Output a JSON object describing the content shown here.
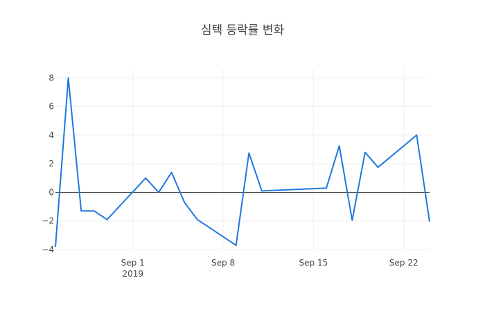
{
  "chart_data": {
    "type": "line",
    "title": "심텍 등락률 변화",
    "xlabel": "",
    "ylabel": "",
    "grid": true,
    "legend": "none",
    "x_range": [
      "2019-08-26",
      "2019-09-24"
    ],
    "y_range": [
      -4,
      8.6
    ],
    "x_ticks": [
      {
        "date": "2019-09-01",
        "label": "Sep 1",
        "sublabel": "2019"
      },
      {
        "date": "2019-09-08",
        "label": "Sep 8",
        "sublabel": ""
      },
      {
        "date": "2019-09-15",
        "label": "Sep 15",
        "sublabel": ""
      },
      {
        "date": "2019-09-22",
        "label": "Sep 22",
        "sublabel": ""
      }
    ],
    "y_ticks": [
      {
        "value": -4,
        "label": "−4"
      },
      {
        "value": -2,
        "label": "−2"
      },
      {
        "value": 0,
        "label": "0"
      },
      {
        "value": 2,
        "label": "2"
      },
      {
        "value": 4,
        "label": "4"
      },
      {
        "value": 6,
        "label": "6"
      },
      {
        "value": 8,
        "label": "8"
      }
    ],
    "series": [
      {
        "color": "#1f77e0",
        "x": [
          "2019-08-26",
          "2019-08-27",
          "2019-08-28",
          "2019-08-29",
          "2019-08-30",
          "2019-09-02",
          "2019-09-03",
          "2019-09-04",
          "2019-09-05",
          "2019-09-06",
          "2019-09-09",
          "2019-09-10",
          "2019-09-11",
          "2019-09-16",
          "2019-09-17",
          "2019-09-18",
          "2019-09-19",
          "2019-09-20",
          "2019-09-23",
          "2019-09-24"
        ],
        "y": [
          -3.8,
          8.0,
          -1.3,
          -1.3,
          -1.9,
          1.0,
          0.0,
          1.4,
          -0.7,
          -1.9,
          -3.7,
          2.75,
          0.1,
          0.3,
          3.25,
          -1.95,
          2.8,
          1.75,
          4.0,
          -2.05
        ]
      }
    ]
  }
}
